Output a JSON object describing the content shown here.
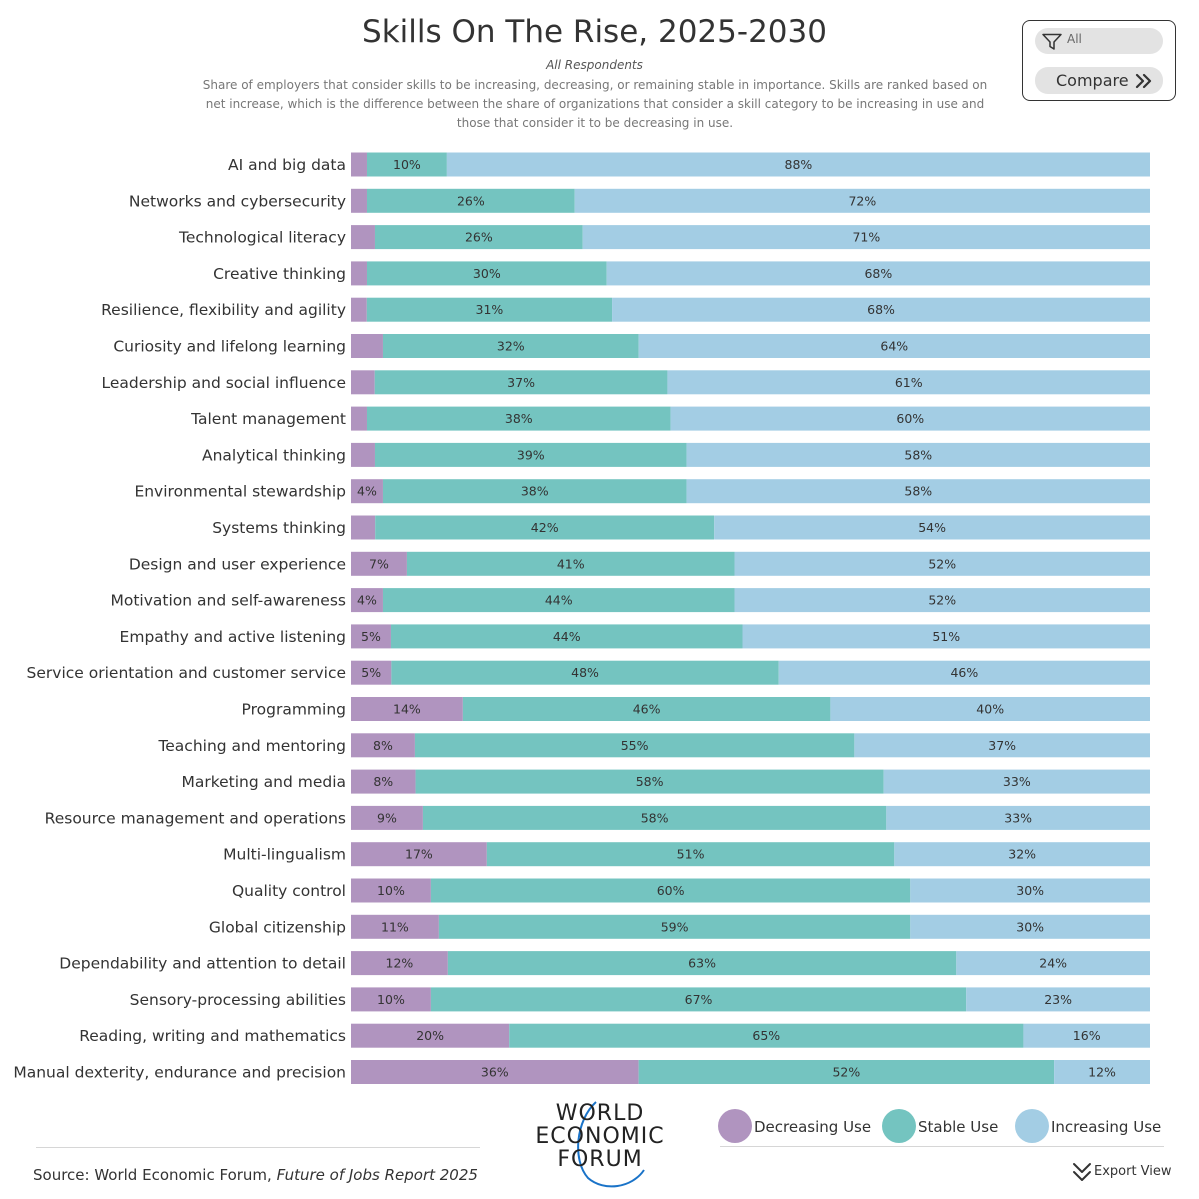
{
  "header": {
    "title": "Skills On The Rise, 2025-2030",
    "subtitle": "All Respondents",
    "description": "Share of employers that consider skills to be increasing, decreasing, or remaining stable in importance. Skills are ranked based on net increase, which is the difference between the share of organizations that consider a skill category to be increasing in use and those that consider it to be decreasing in use."
  },
  "controls": {
    "filter_value": "All",
    "filter_icon": "filter-icon",
    "compare_label": "Compare",
    "compare_icon": "double-chevron-right-icon"
  },
  "chart_data": {
    "type": "bar",
    "orientation": "horizontal",
    "stacked": true,
    "xlim": [
      0,
      100
    ],
    "grid": false,
    "categories": [
      "AI and big data",
      "Networks and cybersecurity",
      "Technological literacy",
      "Creative thinking",
      "Resilience, flexibility and agility",
      "Curiosity and lifelong learning",
      "Leadership and social influence",
      "Talent management",
      "Analytical thinking",
      "Environmental stewardship",
      "Systems thinking",
      "Design and user experience",
      "Motivation and self-awareness",
      "Empathy and active listening",
      "Service orientation and customer service",
      "Programming",
      "Teaching and mentoring",
      "Marketing and media",
      "Resource management and operations",
      "Multi-lingualism",
      "Quality control",
      "Global citizenship",
      "Dependability and attention to detail",
      "Sensory-processing abilities",
      "Reading, writing and mathematics",
      "Manual dexterity, endurance and precision"
    ],
    "series": [
      {
        "name": "Decreasing Use",
        "color": "#b094bf",
        "values": [
          2,
          2,
          3,
          2,
          2,
          4,
          3,
          2,
          3,
          4,
          3,
          7,
          4,
          5,
          5,
          14,
          8,
          8,
          9,
          17,
          10,
          11,
          12,
          10,
          20,
          36
        ],
        "labels": [
          "",
          "",
          "",
          "",
          "",
          "",
          "",
          "",
          "",
          "4%",
          "",
          "7%",
          "4%",
          "5%",
          "5%",
          "14%",
          "8%",
          "8%",
          "9%",
          "17%",
          "10%",
          "11%",
          "12%",
          "10%",
          "20%",
          "36%"
        ]
      },
      {
        "name": "Stable Use",
        "color": "#74c4c0",
        "values": [
          10,
          26,
          26,
          30,
          31,
          32,
          37,
          38,
          39,
          38,
          42,
          41,
          44,
          44,
          48,
          46,
          55,
          58,
          58,
          51,
          60,
          59,
          63,
          67,
          65,
          52
        ],
        "labels": [
          "10%",
          "26%",
          "26%",
          "30%",
          "31%",
          "32%",
          "37%",
          "38%",
          "39%",
          "38%",
          "42%",
          "41%",
          "44%",
          "44%",
          "48%",
          "46%",
          "55%",
          "58%",
          "58%",
          "51%",
          "60%",
          "59%",
          "63%",
          "67%",
          "65%",
          "52%"
        ]
      },
      {
        "name": "Increasing Use",
        "color": "#a3cde4",
        "values": [
          88,
          72,
          71,
          68,
          68,
          64,
          61,
          60,
          58,
          58,
          54,
          52,
          52,
          51,
          46,
          40,
          37,
          33,
          33,
          32,
          30,
          30,
          24,
          23,
          16,
          12
        ],
        "labels": [
          "88%",
          "72%",
          "71%",
          "68%",
          "68%",
          "64%",
          "61%",
          "60%",
          "58%",
          "58%",
          "54%",
          "52%",
          "52%",
          "51%",
          "46%",
          "40%",
          "37%",
          "33%",
          "33%",
          "32%",
          "30%",
          "30%",
          "24%",
          "23%",
          "16%",
          "12%"
        ]
      }
    ]
  },
  "logo": {
    "lines": [
      "WORLD",
      "ECONOMIC",
      "FORUM"
    ]
  },
  "legend": {
    "items": [
      {
        "label": "Decreasing Use",
        "color": "#b094bf"
      },
      {
        "label": "Stable Use",
        "color": "#74c4c0"
      },
      {
        "label": "Increasing Use",
        "color": "#a3cde4"
      }
    ]
  },
  "footer": {
    "source_prefix": "Source: World Economic Forum, ",
    "source_title": "Future of Jobs Report 2025",
    "export_label": "Export View",
    "export_icon": "download-chevron-icon"
  }
}
